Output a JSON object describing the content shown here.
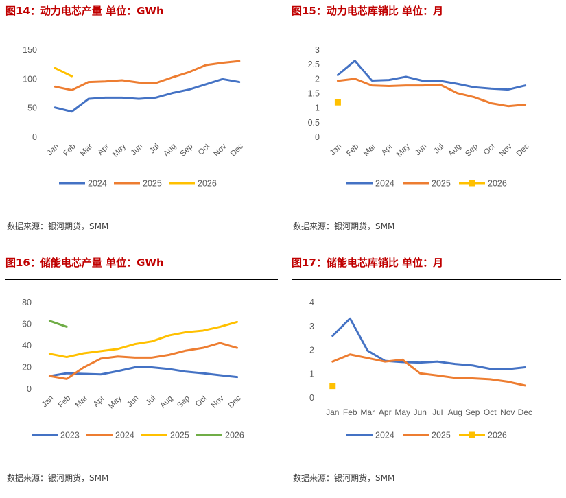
{
  "source_label": "数据来源：银河期货，SMM",
  "chart_data": [
    {
      "id": "fig14",
      "title": "图14：动力电芯产量    单位：GWh",
      "type": "line",
      "categories": [
        "Jan",
        "Feb",
        "Mar",
        "Apr",
        "May",
        "Jun",
        "Jul",
        "Aug",
        "Sep",
        "Oct",
        "Nov",
        "Dec"
      ],
      "y_ticks": [
        "0",
        "50",
        "100",
        "150"
      ],
      "ylim": [
        0,
        150
      ],
      "rotated_x_labels": true,
      "series": [
        {
          "name": "2024",
          "color": "#4472c4",
          "marker": "none",
          "values": [
            51,
            44,
            66,
            68,
            68,
            66,
            68,
            76,
            82,
            91,
            100,
            95
          ]
        },
        {
          "name": "2025",
          "color": "#ed7d31",
          "marker": "none",
          "values": [
            87,
            81,
            95,
            96,
            98,
            94,
            93,
            103,
            112,
            124,
            128,
            131
          ]
        },
        {
          "name": "2026",
          "color": "#ffc000",
          "marker": "none",
          "values": [
            119,
            105,
            null,
            null,
            null,
            null,
            null,
            null,
            null,
            null,
            null,
            null
          ]
        }
      ],
      "legend": "bottom"
    },
    {
      "id": "fig15",
      "title": "图15：动力电芯库销比    单位：月",
      "type": "line",
      "categories": [
        "Jan",
        "Feb",
        "Mar",
        "Apr",
        "May",
        "Jun",
        "Jul",
        "Aug",
        "Sep",
        "Oct",
        "Nov",
        "Dec"
      ],
      "y_ticks": [
        "0",
        "0.5",
        "1",
        "1.5",
        "2",
        "2.5",
        "3"
      ],
      "ylim": [
        0,
        3
      ],
      "rotated_x_labels": true,
      "series": [
        {
          "name": "2024",
          "color": "#4472c4",
          "marker": "none",
          "values": [
            2.14,
            2.63,
            1.95,
            1.97,
            2.08,
            1.94,
            1.94,
            1.84,
            1.72,
            1.67,
            1.64,
            1.78
          ]
        },
        {
          "name": "2025",
          "color": "#ed7d31",
          "marker": "none",
          "values": [
            1.94,
            2.01,
            1.78,
            1.76,
            1.78,
            1.78,
            1.81,
            1.52,
            1.38,
            1.17,
            1.07,
            1.12
          ]
        },
        {
          "name": "2026",
          "color": "#ffc000",
          "marker": "square",
          "values": [
            1.2,
            null,
            null,
            null,
            null,
            null,
            null,
            null,
            null,
            null,
            null,
            null
          ]
        }
      ],
      "legend": "bottom"
    },
    {
      "id": "fig16",
      "title": "图16：储能电芯产量    单位：GWh",
      "type": "line",
      "categories": [
        "Jan",
        "Feb",
        "Mar",
        "Apr",
        "May",
        "Jun",
        "Jul",
        "Aug",
        "Sep",
        "Oct",
        "Nov",
        "Dec"
      ],
      "y_ticks": [
        "0",
        "20",
        "40",
        "60",
        "80"
      ],
      "ylim": [
        0,
        80
      ],
      "rotated_x_labels": true,
      "series": [
        {
          "name": "2023",
          "color": "#4472c4",
          "marker": "none",
          "values": [
            12,
            14.5,
            14,
            13.5,
            16.5,
            20,
            20,
            18.5,
            16,
            14.5,
            12.7,
            11
          ]
        },
        {
          "name": "2024",
          "color": "#ed7d31",
          "marker": "none",
          "values": [
            12,
            9.3,
            20,
            28,
            30,
            29,
            29,
            31.5,
            35.5,
            38,
            42.5,
            38
          ]
        },
        {
          "name": "2025",
          "color": "#ffc000",
          "marker": "none",
          "values": [
            32.5,
            29.5,
            33,
            35,
            37,
            41.5,
            44,
            49.5,
            52.5,
            54,
            57.5,
            62
          ]
        },
        {
          "name": "2026",
          "color": "#70ad47",
          "marker": "none",
          "values": [
            63,
            57.5,
            null,
            null,
            null,
            null,
            null,
            null,
            null,
            null,
            null,
            null
          ]
        }
      ],
      "legend": "bottom"
    },
    {
      "id": "fig17",
      "title": "图17：储能电芯库销比    单位：月",
      "type": "line",
      "categories": [
        "Jan",
        "Feb",
        "Mar",
        "Apr",
        "May",
        "Jun",
        "Jul",
        "Aug",
        "Sep",
        "Oct",
        "Nov",
        "Dec"
      ],
      "y_ticks": [
        "0",
        "1",
        "2",
        "3",
        "4"
      ],
      "ylim": [
        0,
        4
      ],
      "rotated_x_labels": false,
      "series": [
        {
          "name": "2024",
          "color": "#4472c4",
          "marker": "none",
          "values": [
            2.6,
            3.33,
            1.98,
            1.55,
            1.5,
            1.48,
            1.52,
            1.42,
            1.36,
            1.22,
            1.2,
            1.28
          ]
        },
        {
          "name": "2025",
          "color": "#ed7d31",
          "marker": "none",
          "values": [
            1.52,
            1.82,
            1.67,
            1.52,
            1.6,
            1.03,
            0.94,
            0.84,
            0.82,
            0.78,
            0.68,
            0.52
          ]
        },
        {
          "name": "2026",
          "color": "#ffc000",
          "marker": "square",
          "values": [
            0.5,
            null,
            null,
            null,
            null,
            null,
            null,
            null,
            null,
            null,
            null,
            null
          ]
        }
      ],
      "legend": "bottom"
    }
  ]
}
